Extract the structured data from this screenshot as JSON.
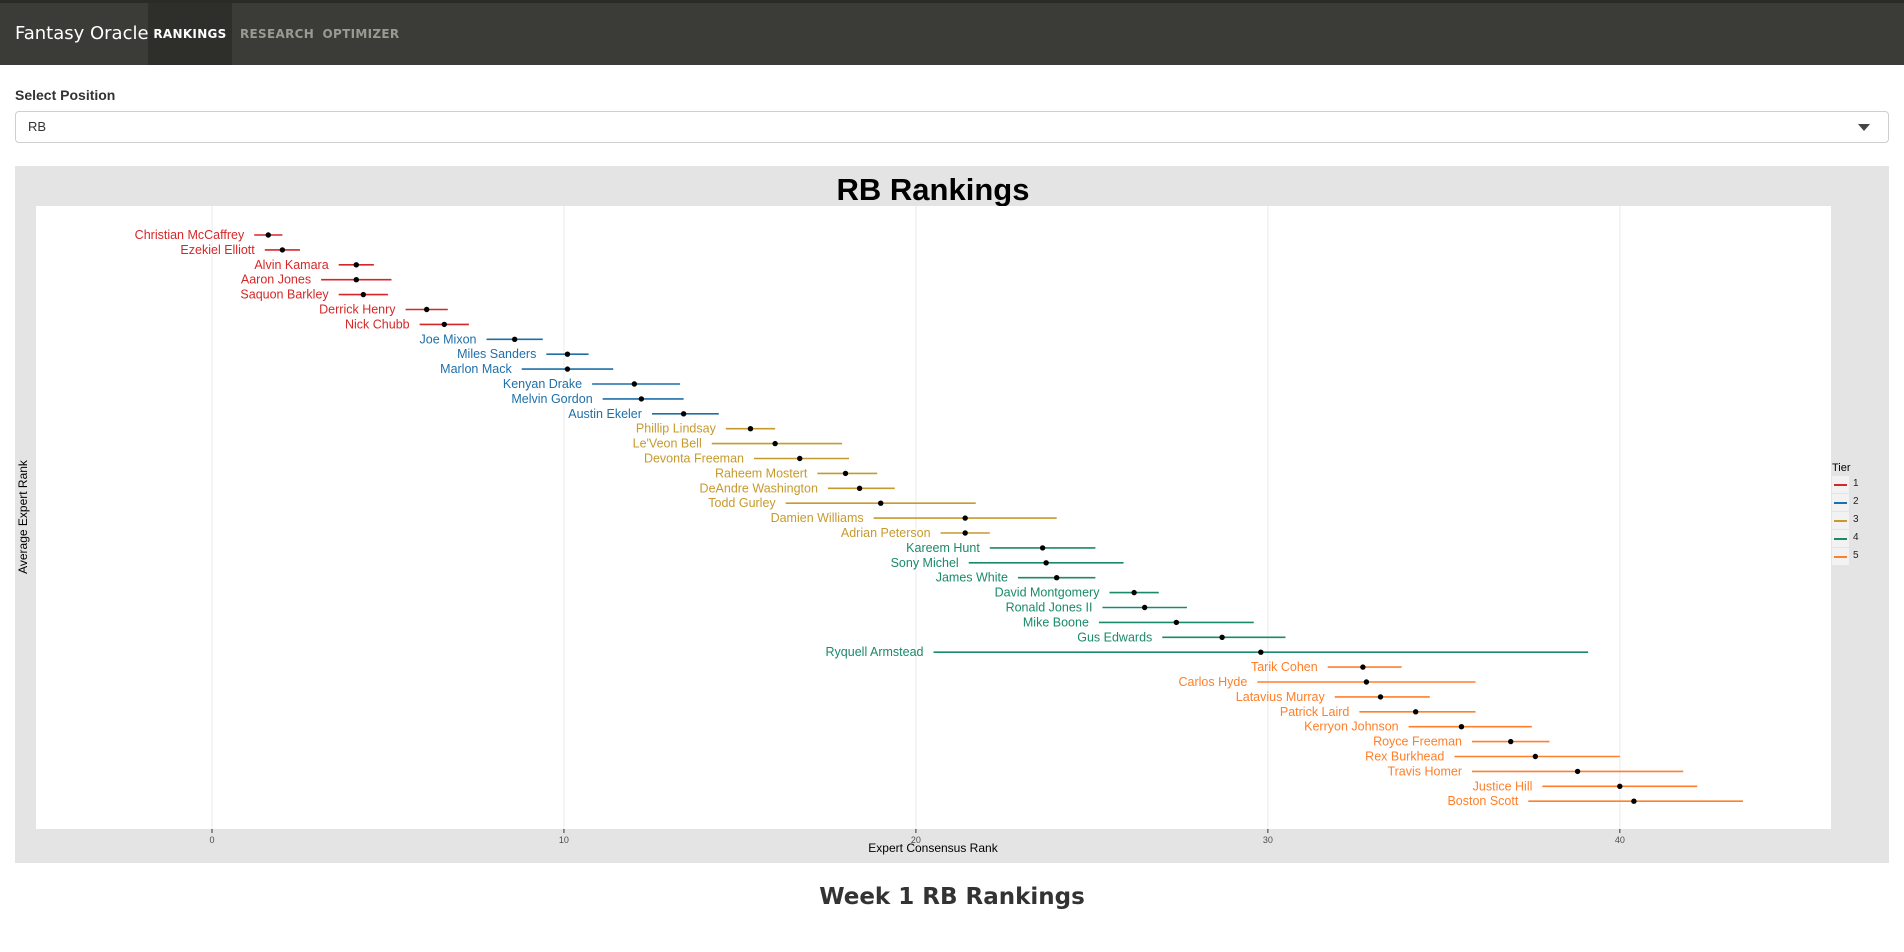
{
  "app": {
    "brand": "Fantasy Oracle",
    "nav": [
      {
        "label": "RANKINGS",
        "active": true
      },
      {
        "label": "RESEARCH",
        "active": false
      },
      {
        "label": "OPTIMIZER",
        "active": false
      }
    ]
  },
  "selector": {
    "label": "Select Position",
    "value": "RB"
  },
  "legend": {
    "title": "Tier"
  },
  "tier_colors": {
    "1": "#d62728",
    "2": "#1f6fa8",
    "3": "#c79a2e",
    "4": "#1a8a6a",
    "5": "#ff7f2a"
  },
  "footer": {
    "title": "Week 1 RB Rankings"
  },
  "chart_data": {
    "type": "scatter",
    "title": "RB Rankings",
    "xlabel": "Expert Consensus Rank",
    "ylabel": "Average Expert Rank",
    "xlim": [
      -5,
      46
    ],
    "xticks": [
      0,
      10,
      20,
      30,
      40
    ],
    "grid": true,
    "legend_position": "right",
    "legend_title": "Tier",
    "tiers": [
      "1",
      "2",
      "3",
      "4",
      "5"
    ],
    "players": [
      {
        "name": "Christian McCaffrey",
        "tier": 1,
        "mean": 1.6,
        "lo": 1.2,
        "hi": 2.0
      },
      {
        "name": "Ezekiel Elliott",
        "tier": 1,
        "mean": 2.0,
        "lo": 1.5,
        "hi": 2.5
      },
      {
        "name": "Alvin Kamara",
        "tier": 1,
        "mean": 4.1,
        "lo": 3.6,
        "hi": 4.6
      },
      {
        "name": "Aaron Jones",
        "tier": 1,
        "mean": 4.1,
        "lo": 3.1,
        "hi": 5.1
      },
      {
        "name": "Saquon Barkley",
        "tier": 1,
        "mean": 4.3,
        "lo": 3.6,
        "hi": 5.0
      },
      {
        "name": "Derrick Henry",
        "tier": 1,
        "mean": 6.1,
        "lo": 5.5,
        "hi": 6.7
      },
      {
        "name": "Nick Chubb",
        "tier": 1,
        "mean": 6.6,
        "lo": 5.9,
        "hi": 7.3
      },
      {
        "name": "Joe Mixon",
        "tier": 2,
        "mean": 8.6,
        "lo": 7.8,
        "hi": 9.4
      },
      {
        "name": "Miles Sanders",
        "tier": 2,
        "mean": 10.1,
        "lo": 9.5,
        "hi": 10.7
      },
      {
        "name": "Marlon Mack",
        "tier": 2,
        "mean": 10.1,
        "lo": 8.8,
        "hi": 11.4
      },
      {
        "name": "Kenyan Drake",
        "tier": 2,
        "mean": 12.0,
        "lo": 10.8,
        "hi": 13.3
      },
      {
        "name": "Melvin Gordon",
        "tier": 2,
        "mean": 12.2,
        "lo": 11.1,
        "hi": 13.4
      },
      {
        "name": "Austin Ekeler",
        "tier": 2,
        "mean": 13.4,
        "lo": 12.5,
        "hi": 14.4
      },
      {
        "name": "Phillip Lindsay",
        "tier": 3,
        "mean": 15.3,
        "lo": 14.6,
        "hi": 16.0
      },
      {
        "name": "Le'Veon Bell",
        "tier": 3,
        "mean": 16.0,
        "lo": 14.2,
        "hi": 17.9
      },
      {
        "name": "Devonta Freeman",
        "tier": 3,
        "mean": 16.7,
        "lo": 15.4,
        "hi": 18.1
      },
      {
        "name": "Raheem Mostert",
        "tier": 3,
        "mean": 18.0,
        "lo": 17.2,
        "hi": 18.9
      },
      {
        "name": "DeAndre Washington",
        "tier": 3,
        "mean": 18.4,
        "lo": 17.5,
        "hi": 19.4
      },
      {
        "name": "Todd Gurley",
        "tier": 3,
        "mean": 19.0,
        "lo": 16.3,
        "hi": 21.7
      },
      {
        "name": "Damien Williams",
        "tier": 3,
        "mean": 21.4,
        "lo": 18.8,
        "hi": 24.0
      },
      {
        "name": "Adrian Peterson",
        "tier": 3,
        "mean": 21.4,
        "lo": 20.7,
        "hi": 22.1
      },
      {
        "name": "Kareem Hunt",
        "tier": 4,
        "mean": 23.6,
        "lo": 22.1,
        "hi": 25.1
      },
      {
        "name": "Sony Michel",
        "tier": 4,
        "mean": 23.7,
        "lo": 21.5,
        "hi": 25.9
      },
      {
        "name": "James White",
        "tier": 4,
        "mean": 24.0,
        "lo": 22.9,
        "hi": 25.1
      },
      {
        "name": "David Montgomery",
        "tier": 4,
        "mean": 26.2,
        "lo": 25.5,
        "hi": 26.9
      },
      {
        "name": "Ronald Jones II",
        "tier": 4,
        "mean": 26.5,
        "lo": 25.3,
        "hi": 27.7
      },
      {
        "name": "Mike Boone",
        "tier": 4,
        "mean": 27.4,
        "lo": 25.2,
        "hi": 29.6
      },
      {
        "name": "Gus Edwards",
        "tier": 4,
        "mean": 28.7,
        "lo": 27.0,
        "hi": 30.5
      },
      {
        "name": "Ryquell Armstead",
        "tier": 4,
        "mean": 29.8,
        "lo": 20.5,
        "hi": 39.1
      },
      {
        "name": "Tarik Cohen",
        "tier": 5,
        "mean": 32.7,
        "lo": 31.7,
        "hi": 33.8
      },
      {
        "name": "Carlos Hyde",
        "tier": 5,
        "mean": 32.8,
        "lo": 29.7,
        "hi": 35.9
      },
      {
        "name": "Latavius Murray",
        "tier": 5,
        "mean": 33.2,
        "lo": 31.9,
        "hi": 34.6
      },
      {
        "name": "Patrick Laird",
        "tier": 5,
        "mean": 34.2,
        "lo": 32.6,
        "hi": 35.9
      },
      {
        "name": "Kerryon Johnson",
        "tier": 5,
        "mean": 35.5,
        "lo": 34.0,
        "hi": 37.5
      },
      {
        "name": "Royce Freeman",
        "tier": 5,
        "mean": 36.9,
        "lo": 35.8,
        "hi": 38.0
      },
      {
        "name": "Rex Burkhead",
        "tier": 5,
        "mean": 37.6,
        "lo": 35.3,
        "hi": 40.0
      },
      {
        "name": "Travis Homer",
        "tier": 5,
        "mean": 38.8,
        "lo": 35.8,
        "hi": 41.8
      },
      {
        "name": "Justice Hill",
        "tier": 5,
        "mean": 40.0,
        "lo": 37.8,
        "hi": 42.2
      },
      {
        "name": "Boston Scott",
        "tier": 5,
        "mean": 40.4,
        "lo": 37.4,
        "hi": 43.5
      }
    ]
  }
}
